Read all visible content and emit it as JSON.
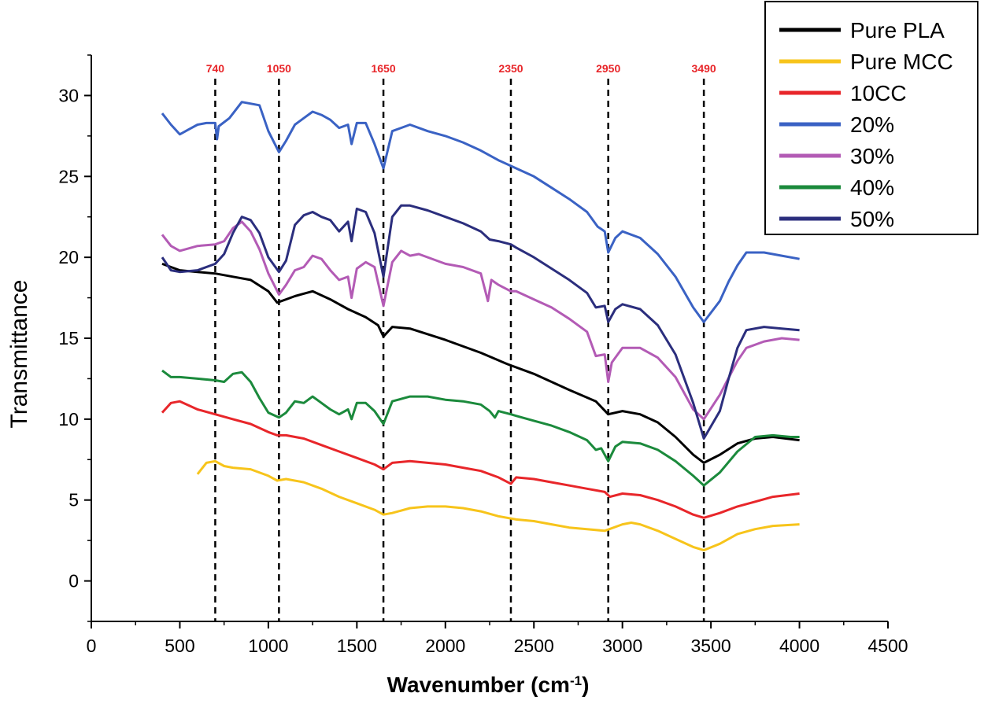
{
  "chart_data": {
    "type": "line",
    "title": "",
    "xlabel": "Wavenumber (cm",
    "xlabel_superscript": "-1",
    "xlabel_close": ")",
    "ylabel": "Transmittance",
    "xlim": [
      0,
      4500
    ],
    "ylim": [
      -2.5,
      32.5
    ],
    "x_ticks": [
      0,
      500,
      1000,
      1500,
      2000,
      2500,
      3000,
      3500,
      4000,
      4500
    ],
    "x_tick_labels": [
      "0",
      "500",
      "1000",
      "1500",
      "2000",
      "2500",
      "3000",
      "3500",
      "4000",
      "4500"
    ],
    "y_ticks": [
      0,
      5,
      10,
      15,
      20,
      25,
      30
    ],
    "y_tick_labels": [
      "0",
      "5",
      "10",
      "15",
      "20",
      "25",
      "30"
    ],
    "grid": false,
    "legend_position": "top-right",
    "annotation_color": "#e8262a",
    "annotations": [
      {
        "label": "740",
        "x": 700
      },
      {
        "label": "1050",
        "x": 1060
      },
      {
        "label": "1650",
        "x": 1650
      },
      {
        "label": "2350",
        "x": 2370
      },
      {
        "label": "2950",
        "x": 2920
      },
      {
        "label": "3490",
        "x": 3460
      }
    ],
    "series": [
      {
        "name": "Pure PLA",
        "color": "#000000",
        "x": [
          400,
          500,
          600,
          700,
          800,
          900,
          1000,
          1050,
          1100,
          1150,
          1250,
          1350,
          1450,
          1550,
          1620,
          1650,
          1700,
          1800,
          2000,
          2200,
          2350,
          2500,
          2700,
          2850,
          2920,
          3000,
          3100,
          3200,
          3300,
          3400,
          3460,
          3550,
          3650,
          3750,
          3850,
          4000
        ],
        "y": [
          19.6,
          19.2,
          19.1,
          19.0,
          18.8,
          18.6,
          17.9,
          17.2,
          17.4,
          17.6,
          17.9,
          17.4,
          16.8,
          16.3,
          15.8,
          15.1,
          15.7,
          15.6,
          14.9,
          14.1,
          13.4,
          12.8,
          11.8,
          11.1,
          10.3,
          10.5,
          10.3,
          9.8,
          8.9,
          7.8,
          7.3,
          7.8,
          8.5,
          8.8,
          8.9,
          8.7
        ]
      },
      {
        "name": "Pure MCC",
        "color": "#f7c41b",
        "x": [
          600,
          650,
          700,
          750,
          800,
          900,
          1000,
          1050,
          1100,
          1200,
          1300,
          1400,
          1500,
          1600,
          1650,
          1700,
          1800,
          1900,
          2000,
          2100,
          2200,
          2300,
          2400,
          2500,
          2600,
          2700,
          2800,
          2900,
          3000,
          3050,
          3100,
          3200,
          3300,
          3400,
          3460,
          3550,
          3650,
          3750,
          3850,
          4000
        ],
        "y": [
          6.6,
          7.3,
          7.4,
          7.1,
          7.0,
          6.9,
          6.5,
          6.2,
          6.3,
          6.1,
          5.7,
          5.2,
          4.8,
          4.4,
          4.1,
          4.2,
          4.5,
          4.6,
          4.6,
          4.5,
          4.3,
          4.0,
          3.8,
          3.7,
          3.5,
          3.3,
          3.2,
          3.1,
          3.5,
          3.6,
          3.5,
          3.1,
          2.6,
          2.1,
          1.9,
          2.3,
          2.9,
          3.2,
          3.4,
          3.5
        ]
      },
      {
        "name": "10CC",
        "color": "#e8262a",
        "x": [
          400,
          450,
          500,
          600,
          700,
          800,
          900,
          1000,
          1050,
          1100,
          1200,
          1300,
          1400,
          1500,
          1600,
          1650,
          1700,
          1800,
          1900,
          2000,
          2100,
          2200,
          2300,
          2370,
          2400,
          2500,
          2600,
          2700,
          2800,
          2900,
          2930,
          3000,
          3100,
          3200,
          3300,
          3400,
          3460,
          3550,
          3650,
          3750,
          3850,
          4000
        ],
        "y": [
          10.4,
          11.0,
          11.1,
          10.6,
          10.3,
          10.0,
          9.7,
          9.2,
          9.0,
          9.0,
          8.8,
          8.4,
          8.0,
          7.6,
          7.2,
          6.9,
          7.3,
          7.4,
          7.3,
          7.2,
          7.0,
          6.8,
          6.4,
          6.0,
          6.4,
          6.3,
          6.1,
          5.9,
          5.7,
          5.5,
          5.2,
          5.4,
          5.3,
          5.0,
          4.6,
          4.1,
          3.9,
          4.2,
          4.6,
          4.9,
          5.2,
          5.4
        ]
      },
      {
        "name": "20%",
        "color": "#3a62c4",
        "x": [
          400,
          450,
          500,
          550,
          600,
          650,
          700,
          710,
          720,
          780,
          850,
          950,
          1000,
          1060,
          1100,
          1150,
          1200,
          1250,
          1300,
          1350,
          1400,
          1450,
          1470,
          1500,
          1550,
          1600,
          1650,
          1700,
          1800,
          1900,
          2000,
          2100,
          2200,
          2300,
          2400,
          2500,
          2600,
          2700,
          2800,
          2860,
          2900,
          2920,
          2960,
          3000,
          3100,
          3200,
          3300,
          3400,
          3460,
          3550,
          3600,
          3650,
          3700,
          3800,
          3900,
          4000
        ],
        "y": [
          28.9,
          28.2,
          27.6,
          27.9,
          28.2,
          28.3,
          28.3,
          27.3,
          28.1,
          28.6,
          29.6,
          29.4,
          27.8,
          26.5,
          27.2,
          28.2,
          28.6,
          29.0,
          28.8,
          28.5,
          28.0,
          28.2,
          27.0,
          28.3,
          28.3,
          27.0,
          25.5,
          27.8,
          28.2,
          27.8,
          27.5,
          27.1,
          26.6,
          26.0,
          25.5,
          25.0,
          24.3,
          23.6,
          22.8,
          21.9,
          21.6,
          20.3,
          21.2,
          21.6,
          21.2,
          20.2,
          18.8,
          16.9,
          16.0,
          17.3,
          18.5,
          19.5,
          20.3,
          20.3,
          20.1,
          19.9
        ]
      },
      {
        "name": "30%",
        "color": "#b35bb5",
        "x": [
          400,
          450,
          500,
          600,
          700,
          750,
          800,
          850,
          900,
          950,
          1000,
          1060,
          1100,
          1150,
          1200,
          1250,
          1300,
          1350,
          1400,
          1450,
          1470,
          1500,
          1550,
          1600,
          1650,
          1700,
          1750,
          1800,
          1850,
          1900,
          2000,
          2100,
          2200,
          2240,
          2260,
          2300,
          2370,
          2400,
          2500,
          2600,
          2700,
          2800,
          2850,
          2900,
          2920,
          2940,
          3000,
          3100,
          3200,
          3300,
          3400,
          3460,
          3550,
          3650,
          3700,
          3800,
          3900,
          4000
        ],
        "y": [
          21.4,
          20.7,
          20.4,
          20.7,
          20.8,
          21.0,
          21.8,
          22.2,
          21.6,
          20.5,
          19.0,
          17.7,
          18.3,
          19.2,
          19.4,
          20.1,
          19.9,
          19.2,
          18.6,
          18.8,
          17.5,
          19.3,
          19.7,
          19.4,
          17.0,
          19.7,
          20.4,
          20.1,
          20.2,
          20.0,
          19.6,
          19.4,
          19.0,
          17.3,
          18.6,
          18.3,
          17.9,
          17.9,
          17.4,
          16.9,
          16.2,
          15.4,
          13.9,
          14.0,
          12.3,
          13.5,
          14.4,
          14.4,
          13.8,
          12.6,
          10.6,
          10.0,
          11.5,
          13.6,
          14.4,
          14.8,
          15.0,
          14.9
        ]
      },
      {
        "name": "40%",
        "color": "#1b8a3c",
        "x": [
          400,
          450,
          500,
          600,
          700,
          750,
          800,
          850,
          900,
          950,
          1000,
          1060,
          1100,
          1150,
          1200,
          1250,
          1300,
          1350,
          1400,
          1450,
          1470,
          1500,
          1550,
          1600,
          1650,
          1700,
          1800,
          1900,
          2000,
          2100,
          2200,
          2250,
          2280,
          2300,
          2370,
          2400,
          2500,
          2600,
          2700,
          2800,
          2850,
          2880,
          2920,
          2960,
          3000,
          3100,
          3200,
          3300,
          3400,
          3460,
          3550,
          3650,
          3750,
          3850,
          3950,
          4000
        ],
        "y": [
          13.0,
          12.6,
          12.6,
          12.5,
          12.4,
          12.3,
          12.8,
          12.9,
          12.3,
          11.3,
          10.4,
          10.1,
          10.4,
          11.1,
          11.0,
          11.4,
          11.0,
          10.6,
          10.3,
          10.6,
          10.0,
          11.0,
          11.0,
          10.5,
          9.7,
          11.1,
          11.4,
          11.4,
          11.2,
          11.1,
          10.9,
          10.5,
          10.1,
          10.5,
          10.3,
          10.2,
          9.9,
          9.6,
          9.2,
          8.7,
          8.1,
          8.2,
          7.4,
          8.3,
          8.6,
          8.5,
          8.1,
          7.4,
          6.5,
          5.9,
          6.7,
          8.0,
          8.9,
          9.0,
          8.9,
          8.9
        ]
      },
      {
        "name": "50%",
        "color": "#2b2e7d",
        "x": [
          400,
          450,
          500,
          600,
          700,
          750,
          800,
          850,
          900,
          950,
          1000,
          1060,
          1100,
          1150,
          1200,
          1250,
          1300,
          1350,
          1400,
          1450,
          1470,
          1500,
          1550,
          1600,
          1650,
          1700,
          1750,
          1800,
          1900,
          2000,
          2100,
          2200,
          2250,
          2300,
          2370,
          2400,
          2500,
          2600,
          2700,
          2800,
          2850,
          2900,
          2920,
          2960,
          3000,
          3100,
          3200,
          3300,
          3400,
          3460,
          3550,
          3600,
          3650,
          3700,
          3800,
          3900,
          4000
        ],
        "y": [
          20.0,
          19.2,
          19.1,
          19.2,
          19.6,
          20.2,
          21.5,
          22.5,
          22.3,
          21.5,
          20.0,
          19.1,
          19.8,
          22.0,
          22.6,
          22.8,
          22.5,
          22.3,
          21.6,
          22.2,
          21.0,
          23.0,
          22.8,
          21.5,
          18.8,
          22.5,
          23.2,
          23.2,
          22.9,
          22.5,
          22.1,
          21.6,
          21.1,
          21.0,
          20.8,
          20.6,
          20.0,
          19.3,
          18.6,
          17.8,
          16.9,
          17.0,
          16.0,
          16.8,
          17.1,
          16.8,
          15.8,
          14.0,
          11.0,
          8.8,
          10.5,
          12.5,
          14.4,
          15.5,
          15.7,
          15.6,
          15.5
        ]
      }
    ]
  }
}
